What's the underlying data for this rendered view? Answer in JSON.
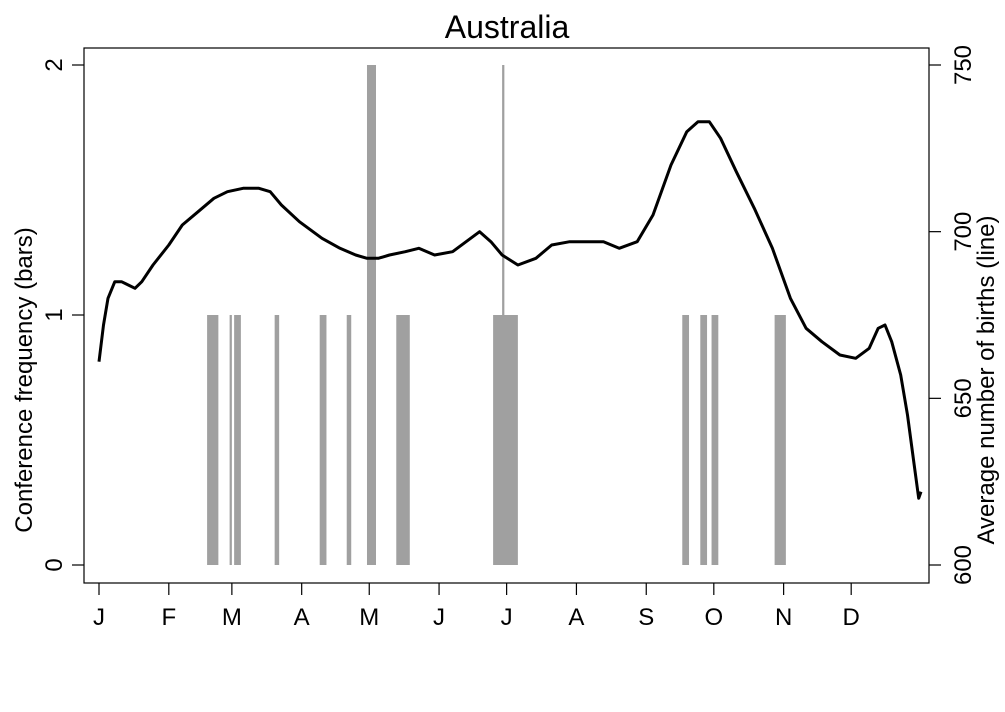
{
  "chart_data": {
    "type": "bar+line",
    "title": "Australia",
    "xlabel": "",
    "ylabel_left": "Conference frequency (bars)",
    "ylabel_right": "Average number of births (line)",
    "x_ticks": [
      "J",
      "F",
      "M",
      "A",
      "M",
      "J",
      "J",
      "A",
      "S",
      "O",
      "N",
      "D"
    ],
    "x_tick_days": [
      1,
      32,
      60,
      91,
      121,
      152,
      182,
      213,
      244,
      274,
      305,
      335
    ],
    "xlim": [
      1,
      366
    ],
    "y_left": {
      "ticks": [
        0,
        1,
        2
      ],
      "ylim": [
        0,
        2
      ]
    },
    "y_right": {
      "ticks": [
        600,
        650,
        700,
        750
      ],
      "ylim": [
        600,
        750
      ]
    },
    "grid": false,
    "legend": "none",
    "colors": {
      "bars": "#a0a0a0",
      "line": "#000000"
    },
    "bars": {
      "name": "Conference frequency",
      "day_ranges": [
        [
          49,
          54,
          1
        ],
        [
          59,
          60,
          1
        ],
        [
          61,
          64,
          1
        ],
        [
          79,
          81,
          1
        ],
        [
          99,
          102,
          1
        ],
        [
          111,
          113,
          1
        ],
        [
          120,
          124,
          2
        ],
        [
          133,
          139,
          1
        ],
        [
          180,
          181,
          2
        ],
        [
          176,
          187,
          1
        ],
        [
          260,
          263,
          1
        ],
        [
          268,
          271,
          1
        ],
        [
          273,
          276,
          1
        ],
        [
          301,
          306,
          1
        ]
      ]
    },
    "line": {
      "name": "Average number of births",
      "points": [
        [
          1,
          661
        ],
        [
          3,
          672
        ],
        [
          5,
          680
        ],
        [
          8,
          685
        ],
        [
          11,
          685
        ],
        [
          14,
          684
        ],
        [
          17,
          683
        ],
        [
          20,
          685
        ],
        [
          25,
          690
        ],
        [
          32,
          696
        ],
        [
          38,
          702
        ],
        [
          45,
          706
        ],
        [
          52,
          710
        ],
        [
          58,
          712
        ],
        [
          65,
          713
        ],
        [
          72,
          713
        ],
        [
          77,
          712
        ],
        [
          82,
          708
        ],
        [
          90,
          703
        ],
        [
          100,
          698
        ],
        [
          108,
          695
        ],
        [
          115,
          693
        ],
        [
          120,
          692
        ],
        [
          125,
          692
        ],
        [
          130,
          693
        ],
        [
          137,
          694
        ],
        [
          143,
          695
        ],
        [
          150,
          693
        ],
        [
          158,
          694
        ],
        [
          164,
          697
        ],
        [
          170,
          700
        ],
        [
          175,
          697
        ],
        [
          180,
          693
        ],
        [
          187,
          690
        ],
        [
          195,
          692
        ],
        [
          202,
          696
        ],
        [
          210,
          697
        ],
        [
          217,
          697
        ],
        [
          225,
          697
        ],
        [
          232,
          695
        ],
        [
          240,
          697
        ],
        [
          247,
          705
        ],
        [
          255,
          720
        ],
        [
          262,
          730
        ],
        [
          267,
          733
        ],
        [
          272,
          733
        ],
        [
          277,
          728
        ],
        [
          284,
          718
        ],
        [
          292,
          707
        ],
        [
          300,
          695
        ],
        [
          308,
          680
        ],
        [
          315,
          671
        ],
        [
          322,
          667
        ],
        [
          330,
          663
        ],
        [
          337,
          662
        ],
        [
          343,
          665
        ],
        [
          347,
          671
        ],
        [
          350,
          672
        ],
        [
          353,
          667
        ],
        [
          357,
          657
        ],
        [
          360,
          645
        ],
        [
          363,
          630
        ],
        [
          365,
          620
        ],
        [
          366,
          622
        ]
      ]
    }
  }
}
